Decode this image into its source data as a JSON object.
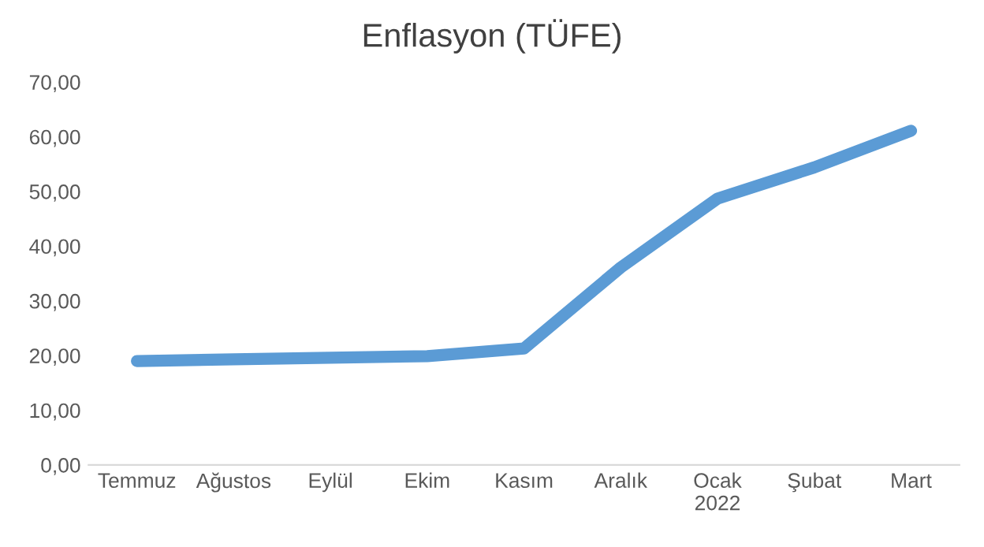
{
  "chart_data": {
    "type": "line",
    "title": "Enflasyon (TÜFE)",
    "categories": [
      "Temmuz",
      "Ağustos",
      "Eylül",
      "Ekim",
      "Kasım",
      "Aralık",
      "Ocak\n2022",
      "Şubat",
      "Mart"
    ],
    "series": [
      {
        "color": "#5b9bd5",
        "values": [
          19.0,
          19.3,
          19.6,
          19.9,
          21.3,
          36.1,
          48.7,
          54.4,
          61.1
        ]
      }
    ],
    "ylim": [
      0,
      70
    ],
    "yticks": [
      {
        "value": 0,
        "label": "0,00"
      },
      {
        "value": 10,
        "label": "10,00"
      },
      {
        "value": 20,
        "label": "20,00"
      },
      {
        "value": 30,
        "label": "30,00"
      },
      {
        "value": 40,
        "label": "40,00"
      },
      {
        "value": 50,
        "label": "50,00"
      },
      {
        "value": 60,
        "label": "60,00"
      },
      {
        "value": 70,
        "label": "70,00"
      }
    ],
    "grid": false,
    "legend": false,
    "marker": "none",
    "line_style": "solid"
  }
}
